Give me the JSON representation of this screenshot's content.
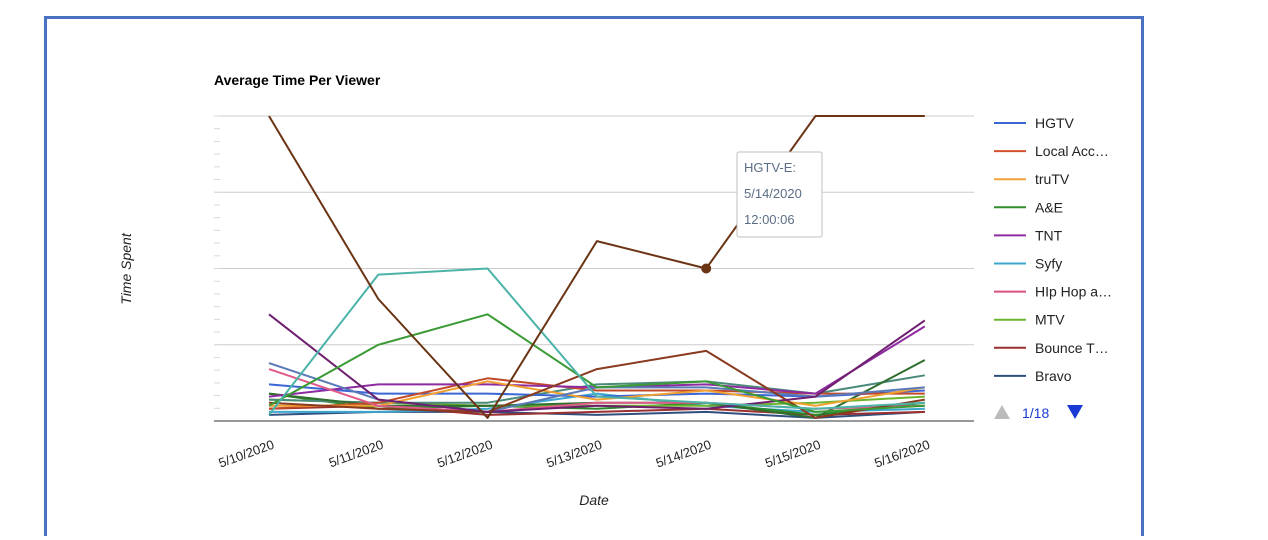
{
  "chart_data": {
    "type": "line",
    "title": "Average Time Per Viewer",
    "xlabel": "Date",
    "ylabel": "Time Spent",
    "categories": [
      "5/10/2020",
      "5/11/2020",
      "5/12/2020",
      "5/13/2020",
      "5/14/2020",
      "5/15/2020",
      "5/16/2020"
    ],
    "ylim": [
      0,
      100
    ],
    "grid": true,
    "legend_position": "right",
    "legend": {
      "entries": [
        {
          "name": "HGTV",
          "color": "#3b66d4"
        },
        {
          "name": "Local Acc…",
          "color": "#d4502a"
        },
        {
          "name": "truTV",
          "color": "#f2a23a"
        },
        {
          "name": "A&E",
          "color": "#2f8f2f"
        },
        {
          "name": "TNT",
          "color": "#8e2ba0"
        },
        {
          "name": "Syfy",
          "color": "#3ca6cf"
        },
        {
          "name": "HIp Hop a…",
          "color": "#dd4f82"
        },
        {
          "name": "MTV",
          "color": "#6db52e"
        },
        {
          "name": "Bounce T…",
          "color": "#9b2f2f"
        },
        {
          "name": "Bravo",
          "color": "#2f4f7f"
        }
      ],
      "pager": {
        "label": "1/18",
        "up_icon": "triangle-up-icon",
        "down_icon": "triangle-down-icon"
      }
    },
    "series": [
      {
        "name": "HGTV-E",
        "color": "#6b3414",
        "values": [
          100,
          40,
          1,
          59,
          50,
          100,
          100
        ]
      },
      {
        "color": "#4bb3a8",
        "values": [
          2,
          48,
          50,
          8,
          6,
          4,
          6
        ]
      },
      {
        "color": "#3a9a34",
        "values": [
          5,
          25,
          35,
          11,
          13,
          3,
          5
        ]
      },
      {
        "color": "#6e1f6e",
        "values": [
          35,
          7,
          3,
          5,
          4,
          8,
          33
        ]
      },
      {
        "color": "#8a3a1f",
        "values": [
          6,
          4,
          3,
          17,
          23,
          1,
          7
        ]
      },
      {
        "color": "#5a7ab8",
        "values": [
          19,
          7,
          3,
          11,
          11,
          8,
          11
        ]
      },
      {
        "color": "#e05a8a",
        "values": [
          17,
          5,
          3,
          6,
          6,
          4,
          5
        ]
      },
      {
        "color": "#f0a030",
        "values": [
          5,
          5,
          13,
          7,
          10,
          5,
          11
        ]
      },
      {
        "color": "#8e2ba0",
        "values": [
          8,
          12,
          12,
          11,
          12,
          9,
          31
        ]
      },
      {
        "color": "#c24a2a",
        "values": [
          4,
          6,
          14,
          10,
          10,
          9,
          9
        ]
      },
      {
        "color": "#3b66d4",
        "values": [
          12,
          9,
          9,
          8,
          9,
          8,
          10
        ]
      },
      {
        "color": "#2f6e2f",
        "values": [
          9,
          5,
          5,
          6,
          6,
          1,
          20
        ]
      },
      {
        "color": "#4a8a7a",
        "values": [
          7,
          6,
          6,
          12,
          13,
          9,
          15
        ]
      },
      {
        "color": "#6db52e",
        "values": [
          7,
          6,
          5,
          5,
          5,
          6,
          8
        ]
      },
      {
        "color": "#2a8a2a",
        "values": [
          9,
          4,
          5,
          4,
          6,
          2,
          6
        ]
      },
      {
        "color": "#3ca6cf",
        "values": [
          3,
          3,
          4,
          9,
          5,
          3,
          4
        ]
      },
      {
        "color": "#9b2f2f",
        "values": [
          4,
          5,
          2,
          3,
          4,
          2,
          3
        ]
      },
      {
        "color": "#2f4f7f",
        "values": [
          2,
          3,
          3,
          2,
          3,
          1,
          3
        ]
      }
    ],
    "tooltip": {
      "series_label": "HGTV-E:",
      "date": "5/14/2020",
      "value": "12:00:06",
      "series_index": 0,
      "point_index": 4
    }
  }
}
